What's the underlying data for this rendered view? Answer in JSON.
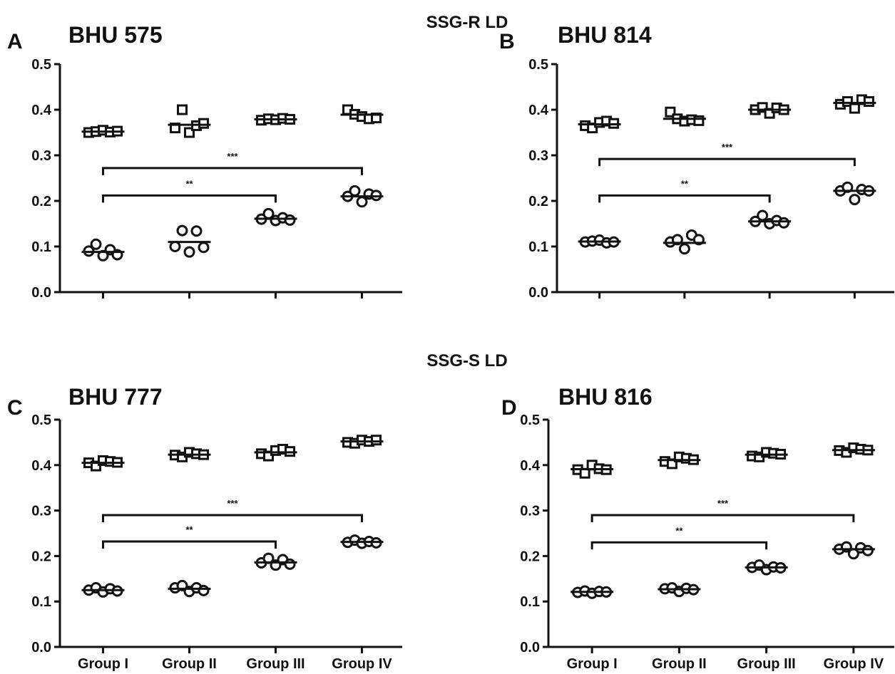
{
  "figure": {
    "section_titles": {
      "top": "SSG-R LD",
      "bottom": "SSG-S LD"
    }
  },
  "chart_data": [
    {
      "type": "scatter",
      "panel": "A",
      "title": "BHU 575",
      "categories": [
        "Group I",
        "Group II",
        "Group III",
        "Group IV"
      ],
      "show_category_labels": false,
      "ylim": [
        0,
        0.5
      ],
      "yticks": [
        "0.0",
        "0.1",
        "0.2",
        "0.3",
        "0.4",
        "0.5"
      ],
      "grid": false,
      "series": [
        {
          "marker": "square",
          "means": [
            0.352,
            0.367,
            0.379,
            0.389
          ],
          "points": [
            [
              0.35,
              0.352,
              0.355,
              0.351,
              0.353
            ],
            [
              0.36,
              0.4,
              0.35,
              0.365,
              0.37
            ],
            [
              0.377,
              0.38,
              0.378,
              0.381,
              0.379
            ],
            [
              0.4,
              0.39,
              0.385,
              0.38,
              0.382
            ]
          ]
        },
        {
          "marker": "circle",
          "means": [
            0.088,
            0.11,
            0.161,
            0.21
          ],
          "points": [
            [
              0.09,
              0.105,
              0.08,
              0.093,
              0.082
            ],
            [
              0.1,
              0.135,
              0.088,
              0.134,
              0.098
            ],
            [
              0.16,
              0.172,
              0.157,
              0.163,
              0.158
            ],
            [
              0.21,
              0.222,
              0.198,
              0.215,
              0.212
            ]
          ]
        }
      ],
      "brackets": [
        {
          "from": 0,
          "to": 3,
          "y": 0.272,
          "label": "***"
        },
        {
          "from": 0,
          "to": 2,
          "y": 0.212,
          "label": "**"
        }
      ]
    },
    {
      "type": "scatter",
      "panel": "B",
      "title": "BHU 814",
      "categories": [
        "Group I",
        "Group II",
        "Group III",
        "Group IV"
      ],
      "show_category_labels": false,
      "ylim": [
        0,
        0.5
      ],
      "yticks": [
        "0.0",
        "0.1",
        "0.2",
        "0.3",
        "0.4",
        "0.5"
      ],
      "grid": false,
      "series": [
        {
          "marker": "square",
          "means": [
            0.368,
            0.38,
            0.4,
            0.415
          ],
          "points": [
            [
              0.365,
              0.36,
              0.372,
              0.375,
              0.37
            ],
            [
              0.395,
              0.38,
              0.375,
              0.378,
              0.376
            ],
            [
              0.4,
              0.405,
              0.392,
              0.404,
              0.4
            ],
            [
              0.412,
              0.418,
              0.403,
              0.422,
              0.418
            ]
          ]
        },
        {
          "marker": "circle",
          "means": [
            0.111,
            0.108,
            0.155,
            0.222
          ],
          "points": [
            [
              0.11,
              0.112,
              0.114,
              0.108,
              0.11
            ],
            [
              0.11,
              0.115,
              0.095,
              0.125,
              0.115
            ],
            [
              0.155,
              0.168,
              0.15,
              0.157,
              0.152
            ],
            [
              0.222,
              0.23,
              0.203,
              0.225,
              0.222
            ]
          ]
        }
      ],
      "brackets": [
        {
          "from": 0,
          "to": 3,
          "y": 0.292,
          "label": "***"
        },
        {
          "from": 0,
          "to": 2,
          "y": 0.212,
          "label": "**"
        }
      ]
    },
    {
      "type": "scatter",
      "panel": "C",
      "title": "BHU 777",
      "categories": [
        "Group I",
        "Group II",
        "Group III",
        "Group IV"
      ],
      "show_category_labels": true,
      "ylim": [
        0,
        0.5
      ],
      "yticks": [
        "0.0",
        "0.1",
        "0.2",
        "0.3",
        "0.4",
        "0.5"
      ],
      "grid": false,
      "series": [
        {
          "marker": "square",
          "means": [
            0.405,
            0.423,
            0.428,
            0.452
          ],
          "points": [
            [
              0.405,
              0.398,
              0.41,
              0.408,
              0.406
            ],
            [
              0.422,
              0.418,
              0.428,
              0.425,
              0.423
            ],
            [
              0.425,
              0.42,
              0.432,
              0.435,
              0.43
            ],
            [
              0.45,
              0.448,
              0.455,
              0.452,
              0.455
            ]
          ]
        },
        {
          "marker": "circle",
          "means": [
            0.125,
            0.128,
            0.186,
            0.231
          ],
          "points": [
            [
              0.125,
              0.13,
              0.121,
              0.128,
              0.123
            ],
            [
              0.13,
              0.135,
              0.122,
              0.13,
              0.124
            ],
            [
              0.185,
              0.195,
              0.18,
              0.192,
              0.182
            ],
            [
              0.23,
              0.235,
              0.228,
              0.232,
              0.229
            ]
          ]
        }
      ],
      "brackets": [
        {
          "from": 0,
          "to": 3,
          "y": 0.29,
          "label": "***"
        },
        {
          "from": 0,
          "to": 2,
          "y": 0.232,
          "label": "**"
        }
      ]
    },
    {
      "type": "scatter",
      "panel": "D",
      "title": "BHU 816",
      "categories": [
        "Group I",
        "Group II",
        "Group III",
        "Group IV"
      ],
      "show_category_labels": true,
      "ylim": [
        0,
        0.5
      ],
      "yticks": [
        "0.0",
        "0.1",
        "0.2",
        "0.3",
        "0.4",
        "0.5"
      ],
      "grid": false,
      "series": [
        {
          "marker": "square",
          "means": [
            0.391,
            0.411,
            0.423,
            0.433
          ],
          "points": [
            [
              0.39,
              0.382,
              0.4,
              0.392,
              0.39
            ],
            [
              0.408,
              0.403,
              0.418,
              0.415,
              0.412
            ],
            [
              0.42,
              0.418,
              0.428,
              0.426,
              0.424
            ],
            [
              0.432,
              0.428,
              0.438,
              0.435,
              0.433
            ]
          ]
        },
        {
          "marker": "circle",
          "means": [
            0.121,
            0.127,
            0.175,
            0.215
          ],
          "points": [
            [
              0.12,
              0.123,
              0.118,
              0.122,
              0.121
            ],
            [
              0.128,
              0.13,
              0.122,
              0.129,
              0.126
            ],
            [
              0.175,
              0.18,
              0.17,
              0.176,
              0.174
            ],
            [
              0.215,
              0.22,
              0.205,
              0.218,
              0.212
            ]
          ]
        }
      ],
      "brackets": [
        {
          "from": 0,
          "to": 3,
          "y": 0.29,
          "label": "***"
        },
        {
          "from": 0,
          "to": 2,
          "y": 0.23,
          "label": "**"
        }
      ]
    }
  ]
}
